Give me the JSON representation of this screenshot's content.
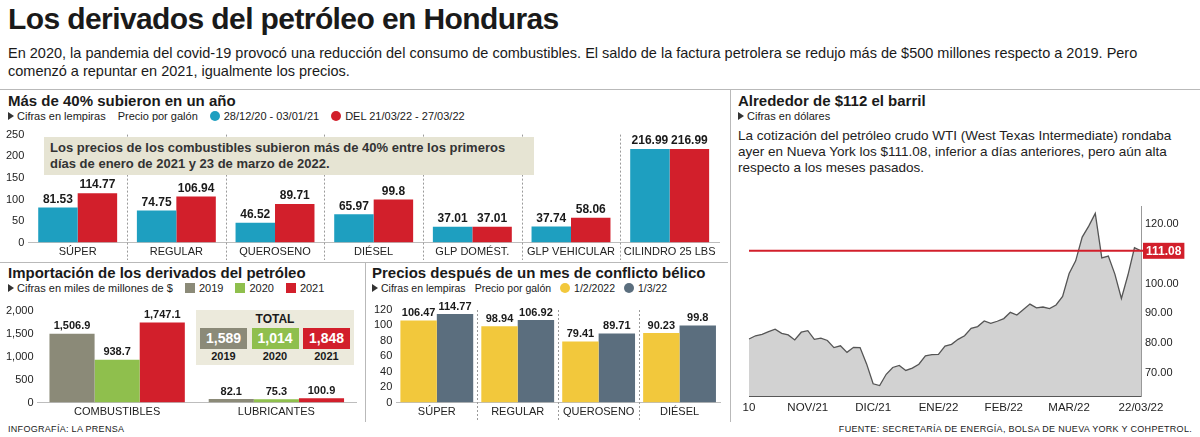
{
  "title": "Los derivados del petróleo en Honduras",
  "subtitle": "En 2020, la pandemia del covid-19 provocó una reducción del consumo de combustibles. El saldo de la factura petrolera se redujo más de $500 millones respecto a 2019. Pero comenzó a repuntar en 2021, igualmente los precios.",
  "credit": "INFOGRAFÍA: LA PRENSA",
  "source": "FUENTE: SECRETARÍA DE ENERGÍA, BOLSA DE NUEVA YORK Y COHPETROL.",
  "chart_data": [
    {
      "type": "bar",
      "title": "Más de 40% subieron en un año",
      "subtitle": [
        "Cifras en lempiras",
        "Precio por galón"
      ],
      "annotation": "Los precios de los combustibles subieron más de 40% entre los primeros días de enero de 2021 y 23 de marzo de 2022.",
      "categories": [
        "SÚPER",
        "REGULAR",
        "QUEROSENO",
        "DIÉSEL",
        "GLP DOMÉST.",
        "GLP VEHICULAR",
        "CILINDRO 25 LBS"
      ],
      "series": [
        {
          "name": "28/12/20 - 03/01/21",
          "color": "#1e9fc0",
          "values": [
            81.53,
            74.75,
            46.52,
            65.97,
            37.01,
            37.74,
            216.99
          ]
        },
        {
          "name": "DEL 21/03/22 - 27/03/22",
          "color": "#d21f2b",
          "values": [
            114.77,
            106.94,
            89.71,
            99.8,
            37.01,
            58.06,
            216.99
          ]
        }
      ],
      "ylim": [
        0,
        250
      ],
      "yticks": [
        0,
        50,
        100,
        150,
        200,
        250
      ],
      "grid": false,
      "legend": "top",
      "data_labels": true
    },
    {
      "type": "bar",
      "title": "Importación de los derivados del petróleo",
      "subtitle": [
        "Cifras en miles de millones de $"
      ],
      "categories": [
        "COMBUSTIBLES",
        "LUBRICANTES"
      ],
      "series": [
        {
          "name": "2019",
          "color": "#8b8a78",
          "values": [
            1506.9,
            82.1
          ],
          "value_labels": [
            "1,506.9",
            "82.1"
          ]
        },
        {
          "name": "2020",
          "color": "#8fbf4d",
          "values": [
            938.7,
            75.3
          ],
          "value_labels": [
            "938.7",
            "75.3"
          ]
        },
        {
          "name": "2021",
          "color": "#d21f2b",
          "values": [
            1747.1,
            100.9
          ],
          "value_labels": [
            "1,747.1",
            "100.9"
          ]
        }
      ],
      "totals": {
        "title": "TOTAL",
        "values": [
          1589,
          1014,
          1848
        ],
        "value_labels": [
          "1,589",
          "1,014",
          "1,848"
        ]
      },
      "ylim": [
        0,
        2000
      ],
      "yticks": [
        0,
        500,
        {
          "value": 1000,
          "label": "1,000"
        },
        {
          "value": 1500,
          "label": "1,500"
        },
        {
          "value": 2000,
          "label": "2,000"
        }
      ],
      "grid": false,
      "legend": "top",
      "data_labels": true
    },
    {
      "type": "bar",
      "title": "Precios después de un mes de conflicto bélico",
      "subtitle": [
        "Cifras en lempiras",
        "Precio por galón"
      ],
      "categories": [
        "SÚPER",
        "REGULAR",
        "QUEROSENO",
        "DIÉSEL"
      ],
      "series": [
        {
          "name": "1/2/2022",
          "color": "#f2c83c",
          "values": [
            106.47,
            98.94,
            79.41,
            90.23
          ]
        },
        {
          "name": "1/3/22",
          "color": "#5b6e7e",
          "values": [
            114.77,
            106.92,
            89.71,
            99.8
          ]
        }
      ],
      "ylim": [
        0,
        120
      ],
      "yticks": [
        0,
        20,
        40,
        60,
        80,
        100,
        120
      ],
      "grid": false,
      "legend": "top",
      "data_labels": true
    },
    {
      "type": "line",
      "title": "Alrededor de $112 el barril",
      "subtitle": [
        "Cifras en dólares"
      ],
      "annotation": "La cotización del petróleo crudo WTI (West Texas Intermediate) rondaba ayer en Nueva York los $111.08, inferior a días anteriores, pero aún alta respecto a los meses pasados.",
      "categories": [
        "10",
        null,
        null,
        null,
        null,
        null,
        null,
        null,
        null,
        "NOV/21",
        null,
        null,
        null,
        null,
        null,
        null,
        null,
        null,
        null,
        "DIC/21",
        null,
        null,
        null,
        null,
        null,
        null,
        null,
        null,
        null,
        "ENE/22",
        null,
        null,
        null,
        null,
        null,
        null,
        null,
        null,
        null,
        "FEB/22",
        null,
        null,
        null,
        null,
        null,
        null,
        null,
        null,
        null,
        "MAR/22",
        null,
        null,
        null,
        null,
        null,
        null,
        null,
        null,
        null,
        null,
        "22/03/22"
      ],
      "values": [
        81.3,
        82.4,
        82.9,
        83.8,
        84.6,
        83.2,
        82.7,
        81.0,
        83.6,
        84.1,
        81.2,
        81.6,
        80.8,
        78.4,
        79.0,
        76.8,
        78.5,
        78.4,
        72.9,
        66.2,
        65.6,
        69.4,
        71.7,
        72.4,
        70.7,
        71.5,
        72.8,
        75.6,
        76.0,
        76.1,
        78.9,
        79.5,
        81.2,
        82.4,
        84.9,
        85.5,
        87.4,
        86.6,
        87.3,
        88.2,
        90.3,
        89.4,
        91.3,
        93.1,
        91.8,
        92.1,
        91.6,
        92.8,
        95.7,
        103.4,
        107.7,
        115.7,
        119.4,
        123.7,
        108.7,
        109.3,
        103.2,
        95.0,
        102.9,
        112.1,
        111.08
      ],
      "color": "#555555",
      "reference_line": {
        "value": 111.08,
        "color": "#d21f2b"
      },
      "ylim": [
        62,
        126
      ],
      "yticks": [
        {
          "value": 70,
          "label": "70.00"
        },
        {
          "value": 80,
          "label": "80.00"
        },
        {
          "value": 90,
          "label": "90.00"
        },
        {
          "value": 100,
          "label": "100.00"
        },
        {
          "value": 120,
          "label": "120.00"
        }
      ],
      "grid": false
    }
  ]
}
